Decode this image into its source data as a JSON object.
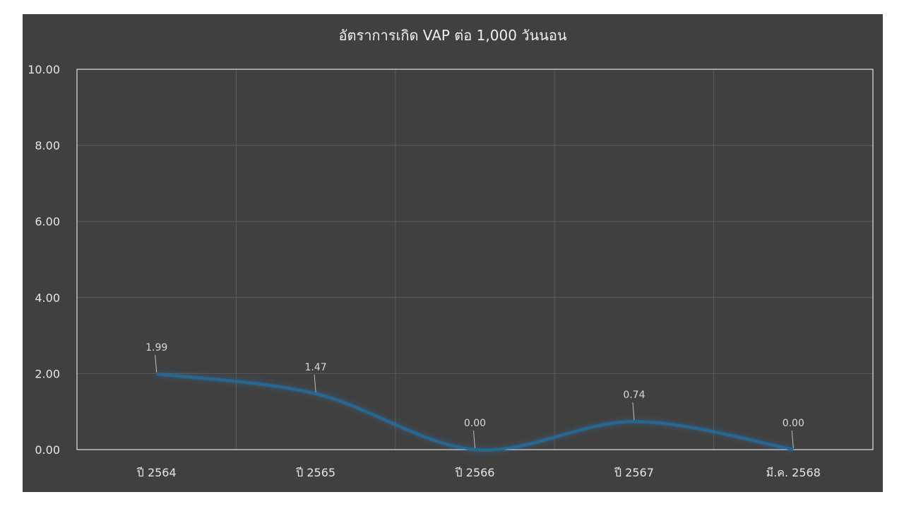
{
  "chart_data": {
    "type": "line",
    "title": "อัตราการเกิด VAP ต่อ 1,000 วันนอน",
    "xlabel": "",
    "ylabel": "",
    "categories": [
      "ปี 2564",
      "ปี 2565",
      "ปี 2566",
      "ปี 2567",
      "มี.ค. 2568"
    ],
    "series": [
      {
        "values": [
          1.99,
          1.47,
          0.0,
          0.74,
          0.0
        ]
      }
    ],
    "data_labels": [
      "1.99",
      "1.47",
      "0.00",
      "0.74",
      "0.00"
    ],
    "ylim": [
      0,
      10
    ],
    "yticks": [
      "0.00",
      "2.00",
      "4.00",
      "6.00",
      "8.00",
      "10.00"
    ],
    "grid": true,
    "smooth": true,
    "colors": {
      "background": "#404040",
      "line": "#1f6a9b",
      "glow": "#2f8fd0",
      "grid": "#5a5a5a",
      "plot_border": "#ffffff"
    }
  }
}
